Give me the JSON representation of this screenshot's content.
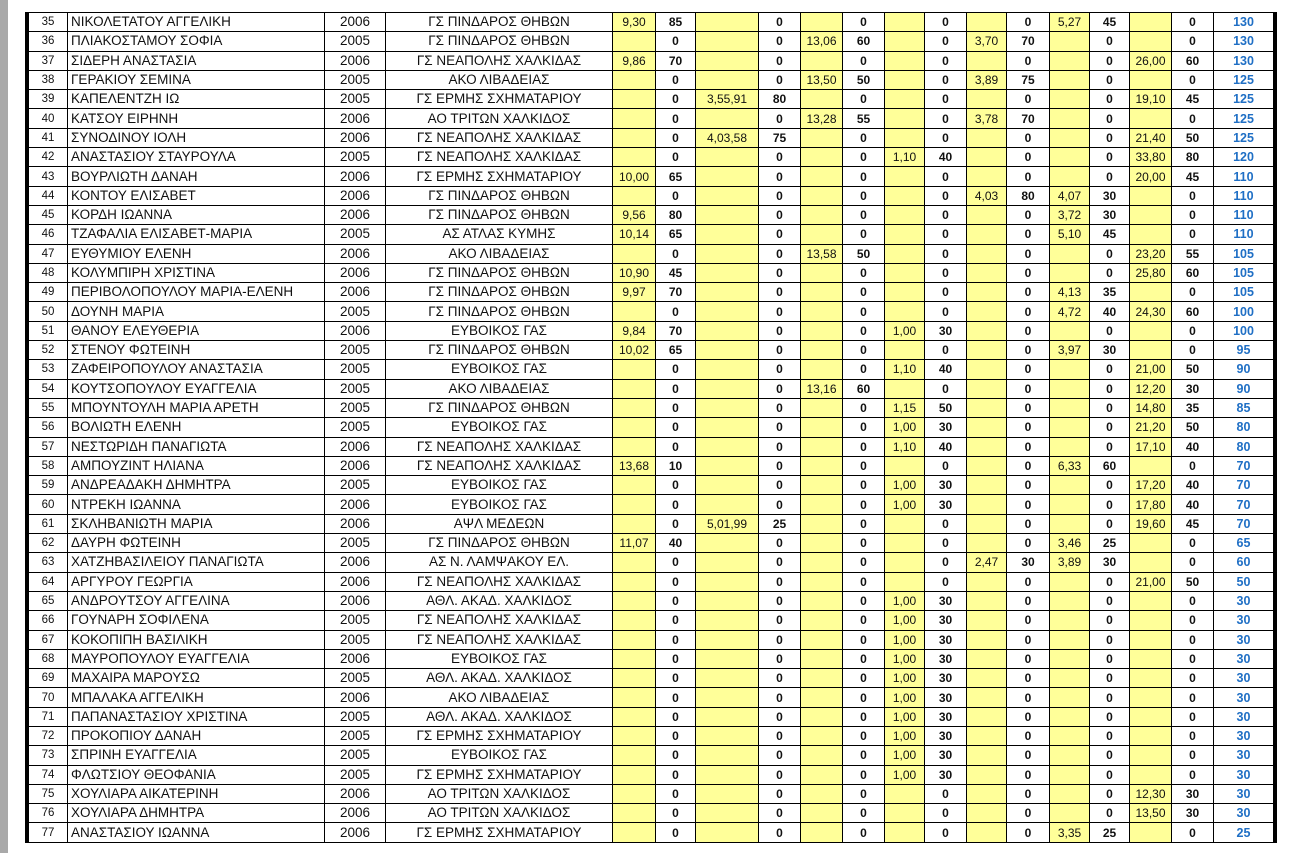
{
  "colors": {
    "performance_bg": "#ffff99",
    "total_text": "#1f6fc5"
  },
  "rows": [
    [
      "35",
      "ΝΙΚΟΛΕΤΑΤΟΥ ΑΓΓΕΛΙΚΗ",
      "2006",
      "ΓΣ ΠΙΝΔΑΡΟΣ ΘΗΒΩΝ",
      "9,30",
      "85",
      "",
      "0",
      "",
      "0",
      "",
      "0",
      "",
      "0",
      "5,27",
      "45",
      "",
      "0",
      "130"
    ],
    [
      "36",
      "ΠΛΙΑΚΟΣΤΑΜΟΥ ΣΟΦΙΑ",
      "2005",
      "ΓΣ ΠΙΝΔΑΡΟΣ ΘΗΒΩΝ",
      "",
      "0",
      "",
      "0",
      "13,06",
      "60",
      "",
      "0",
      "3,70",
      "70",
      "",
      "0",
      "",
      "0",
      "130"
    ],
    [
      "37",
      "ΣΙΔΕΡΗ ΑΝΑΣΤΑΣΙΑ",
      "2006",
      "ΓΣ ΝΕΑΠΟΛΗΣ ΧΑΛΚΙΔΑΣ",
      "9,86",
      "70",
      "",
      "0",
      "",
      "0",
      "",
      "0",
      "",
      "0",
      "",
      "0",
      "26,00",
      "60",
      "130"
    ],
    [
      "38",
      "ΓΕΡΑΚΙΟΥ ΣΕΜΙΝΑ",
      "2005",
      "ΑΚΟ ΛΙΒΑΔΕΙΑΣ",
      "",
      "0",
      "",
      "0",
      "13,50",
      "50",
      "",
      "0",
      "3,89",
      "75",
      "",
      "0",
      "",
      "0",
      "125"
    ],
    [
      "39",
      "ΚΑΠΕΛΕΝΤΖΗ ΙΩ",
      "2005",
      "ΓΣ ΕΡΜΗΣ ΣΧΗΜΑΤΑΡΙΟΥ",
      "",
      "0",
      "3,55,91",
      "80",
      "",
      "0",
      "",
      "0",
      "",
      "0",
      "",
      "0",
      "19,10",
      "45",
      "125"
    ],
    [
      "40",
      "ΚΑΤΣΟΥ ΕΙΡΗΝΗ",
      "2006",
      "ΑΟ ΤΡΙΤΩΝ ΧΑΛΚΙΔΟΣ",
      "",
      "0",
      "",
      "0",
      "13,28",
      "55",
      "",
      "0",
      "3,78",
      "70",
      "",
      "0",
      "",
      "0",
      "125"
    ],
    [
      "41",
      "ΣΥΝΟΔΙΝΟΥ ΙΟΛΗ",
      "2006",
      "ΓΣ ΝΕΑΠΟΛΗΣ ΧΑΛΚΙΔΑΣ",
      "",
      "0",
      "4,03,58",
      "75",
      "",
      "0",
      "",
      "0",
      "",
      "0",
      "",
      "0",
      "21,40",
      "50",
      "125"
    ],
    [
      "42",
      "ΑΝΑΣΤΑΣΙΟΥ ΣΤΑΥΡΟΥΛΑ",
      "2005",
      "ΓΣ ΝΕΑΠΟΛΗΣ ΧΑΛΚΙΔΑΣ",
      "",
      "0",
      "",
      "0",
      "",
      "0",
      "1,10",
      "40",
      "",
      "0",
      "",
      "0",
      "33,80",
      "80",
      "120"
    ],
    [
      "43",
      "ΒΟΥΡΛΙΩΤΗ ΔΑΝΑΗ",
      "2006",
      "ΓΣ ΕΡΜΗΣ ΣΧΗΜΑΤΑΡΙΟΥ",
      "10,00",
      "65",
      "",
      "0",
      "",
      "0",
      "",
      "0",
      "",
      "0",
      "",
      "0",
      "20,00",
      "45",
      "110"
    ],
    [
      "44",
      "ΚΟΝΤΟΥ ΕΛΙΣΑΒΕΤ",
      "2006",
      "ΓΣ ΠΙΝΔΑΡΟΣ ΘΗΒΩΝ",
      "",
      "0",
      "",
      "0",
      "",
      "0",
      "",
      "0",
      "4,03",
      "80",
      "4,07",
      "30",
      "",
      "0",
      "110"
    ],
    [
      "45",
      "ΚΟΡΔΗ ΙΩΑΝΝΑ",
      "2006",
      "ΓΣ ΠΙΝΔΑΡΟΣ ΘΗΒΩΝ",
      "9,56",
      "80",
      "",
      "0",
      "",
      "0",
      "",
      "0",
      "",
      "0",
      "3,72",
      "30",
      "",
      "0",
      "110"
    ],
    [
      "46",
      "ΤΖΑΦΑΛΙΑ ΕΛΙΣΑΒΕΤ-ΜΑΡΙΑ",
      "2005",
      "ΑΣ ΑΤΛΑΣ ΚΥΜΗΣ",
      "10,14",
      "65",
      "",
      "0",
      "",
      "0",
      "",
      "0",
      "",
      "0",
      "5,10",
      "45",
      "",
      "0",
      "110"
    ],
    [
      "47",
      "ΕΥΘΥΜΙΟΥ ΕΛΕΝΗ",
      "2006",
      "ΑΚΟ ΛΙΒΑΔΕΙΑΣ",
      "",
      "0",
      "",
      "0",
      "13,58",
      "50",
      "",
      "0",
      "",
      "0",
      "",
      "0",
      "23,20",
      "55",
      "105"
    ],
    [
      "48",
      "ΚΟΛΥΜΠΙΡΗ ΧΡΙΣΤΙΝΑ",
      "2006",
      "ΓΣ ΠΙΝΔΑΡΟΣ ΘΗΒΩΝ",
      "10,90",
      "45",
      "",
      "0",
      "",
      "0",
      "",
      "0",
      "",
      "0",
      "",
      "0",
      "25,80",
      "60",
      "105"
    ],
    [
      "49",
      "ΠΕΡΙΒΟΛΟΠΟΥΛΟΥ ΜΑΡΙΑ-ΕΛΕΝΗ",
      "2006",
      "ΓΣ ΠΙΝΔΑΡΟΣ ΘΗΒΩΝ",
      "9,97",
      "70",
      "",
      "0",
      "",
      "0",
      "",
      "0",
      "",
      "0",
      "4,13",
      "35",
      "",
      "0",
      "105"
    ],
    [
      "50",
      "ΔΟΥΝΗ ΜΑΡΙΑ",
      "2005",
      "ΓΣ ΠΙΝΔΑΡΟΣ ΘΗΒΩΝ",
      "",
      "0",
      "",
      "0",
      "",
      "0",
      "",
      "0",
      "",
      "0",
      "4,72",
      "40",
      "24,30",
      "60",
      "100"
    ],
    [
      "51",
      "ΘΑΝΟΥ ΕΛΕΥΘΕΡΙΑ",
      "2006",
      "ΕΥΒΟΙΚΟΣ ΓΑΣ",
      "9,84",
      "70",
      "",
      "0",
      "",
      "0",
      "1,00",
      "30",
      "",
      "0",
      "",
      "0",
      "",
      "0",
      "100"
    ],
    [
      "52",
      "ΣΤΕΝΟΥ ΦΩΤΕΙΝΗ",
      "2005",
      "ΓΣ ΠΙΝΔΑΡΟΣ ΘΗΒΩΝ",
      "10,02",
      "65",
      "",
      "0",
      "",
      "0",
      "",
      "0",
      "",
      "0",
      "3,97",
      "30",
      "",
      "0",
      "95"
    ],
    [
      "53",
      "ΖΑΦΕΙΡΟΠΟΥΛΟΥ ΑΝΑΣΤΑΣΙΑ",
      "2005",
      "ΕΥΒΟΙΚΟΣ ΓΑΣ",
      "",
      "0",
      "",
      "0",
      "",
      "0",
      "1,10",
      "40",
      "",
      "0",
      "",
      "0",
      "21,00",
      "50",
      "90"
    ],
    [
      "54",
      "ΚΟΥΤΣΟΠΟΥΛΟΥ ΕΥΑΓΓΕΛΙΑ",
      "2005",
      "ΑΚΟ ΛΙΒΑΔΕΙΑΣ",
      "",
      "0",
      "",
      "0",
      "13,16",
      "60",
      "",
      "0",
      "",
      "0",
      "",
      "0",
      "12,20",
      "30",
      "90"
    ],
    [
      "55",
      "ΜΠΟΥΝΤΟΥΛΗ ΜΑΡΙΑ ΑΡΕΤΗ",
      "2005",
      "ΓΣ ΠΙΝΔΑΡΟΣ ΘΗΒΩΝ",
      "",
      "0",
      "",
      "0",
      "",
      "0",
      "1,15",
      "50",
      "",
      "0",
      "",
      "0",
      "14,80",
      "35",
      "85"
    ],
    [
      "56",
      "ΒΟΛΙΩΤΗ ΕΛΕΝΗ",
      "2005",
      "ΕΥΒΟΙΚΟΣ ΓΑΣ",
      "",
      "0",
      "",
      "0",
      "",
      "0",
      "1,00",
      "30",
      "",
      "0",
      "",
      "0",
      "21,20",
      "50",
      "80"
    ],
    [
      "57",
      "ΝΕΣΤΩΡΙΔΗ ΠΑΝΑΓΙΩΤΑ",
      "2006",
      "ΓΣ ΝΕΑΠΟΛΗΣ ΧΑΛΚΙΔΑΣ",
      "",
      "0",
      "",
      "0",
      "",
      "0",
      "1,10",
      "40",
      "",
      "0",
      "",
      "0",
      "17,10",
      "40",
      "80"
    ],
    [
      "58",
      "ΑΜΠΟΥΖΙΝΤ ΗΛΙΑΝΑ",
      "2006",
      "ΓΣ ΝΕΑΠΟΛΗΣ ΧΑΛΚΙΔΑΣ",
      "13,68",
      "10",
      "",
      "0",
      "",
      "0",
      "",
      "0",
      "",
      "0",
      "6,33",
      "60",
      "",
      "0",
      "70"
    ],
    [
      "59",
      "ΑΝΔΡΕΑΔΑΚΗ ΔΗΜΗΤΡΑ",
      "2005",
      "ΕΥΒΟΙΚΟΣ ΓΑΣ",
      "",
      "0",
      "",
      "0",
      "",
      "0",
      "1,00",
      "30",
      "",
      "0",
      "",
      "0",
      "17,20",
      "40",
      "70"
    ],
    [
      "60",
      "ΝΤΡΕΚΗ ΙΩΑΝΝΑ",
      "2006",
      "ΕΥΒΟΙΚΟΣ ΓΑΣ",
      "",
      "0",
      "",
      "0",
      "",
      "0",
      "1,00",
      "30",
      "",
      "0",
      "",
      "0",
      "17,80",
      "40",
      "70"
    ],
    [
      "61",
      "ΣΚΛΗΒΑΝΙΩΤΗ ΜΑΡΙΑ",
      "2006",
      "ΑΨΛ ΜΕΔΕΩΝ",
      "",
      "0",
      "5,01,99",
      "25",
      "",
      "0",
      "",
      "0",
      "",
      "0",
      "",
      "0",
      "19,60",
      "45",
      "70"
    ],
    [
      "62",
      "ΔΑΥΡΗ ΦΩΤΕΙΝΗ",
      "2005",
      "ΓΣ ΠΙΝΔΑΡΟΣ ΘΗΒΩΝ",
      "11,07",
      "40",
      "",
      "0",
      "",
      "0",
      "",
      "0",
      "",
      "0",
      "3,46",
      "25",
      "",
      "0",
      "65"
    ],
    [
      "63",
      "ΧΑΤΖΗΒΑΣΙΛΕΙΟΥ ΠΑΝΑΓΙΩΤΑ",
      "2006",
      "ΑΣ Ν. ΛΑΜΨΑΚΟΥ ΕΛ.",
      "",
      "0",
      "",
      "0",
      "",
      "0",
      "",
      "0",
      "2,47",
      "30",
      "3,89",
      "30",
      "",
      "0",
      "60"
    ],
    [
      "64",
      "ΑΡΓΥΡΟΥ ΓΕΩΡΓΙΑ",
      "2006",
      "ΓΣ ΝΕΑΠΟΛΗΣ ΧΑΛΚΙΔΑΣ",
      "",
      "0",
      "",
      "0",
      "",
      "0",
      "",
      "0",
      "",
      "0",
      "",
      "0",
      "21,00",
      "50",
      "50"
    ],
    [
      "65",
      "ΑΝΔΡΟΥΤΣΟΥ ΑΓΓΕΛΙΝΑ",
      "2006",
      "ΑΘΛ. ΑΚΑΔ. ΧΑΛΚΙΔΟΣ",
      "",
      "0",
      "",
      "0",
      "",
      "0",
      "1,00",
      "30",
      "",
      "0",
      "",
      "0",
      "",
      "0",
      "30"
    ],
    [
      "66",
      "ΓΟΥΝΑΡΗ ΣΟΦΙΛΕΝΑ",
      "2005",
      "ΓΣ ΝΕΑΠΟΛΗΣ ΧΑΛΚΙΔΑΣ",
      "",
      "0",
      "",
      "0",
      "",
      "0",
      "1,00",
      "30",
      "",
      "0",
      "",
      "0",
      "",
      "0",
      "30"
    ],
    [
      "67",
      "ΚΟΚΟΠΙΠΗ ΒΑΣΙΛΙΚΗ",
      "2005",
      "ΓΣ ΝΕΑΠΟΛΗΣ ΧΑΛΚΙΔΑΣ",
      "",
      "0",
      "",
      "0",
      "",
      "0",
      "1,00",
      "30",
      "",
      "0",
      "",
      "0",
      "",
      "0",
      "30"
    ],
    [
      "68",
      "ΜΑΥΡΟΠΟΥΛΟΥ ΕΥΑΓΓΕΛΙΑ",
      "2006",
      "ΕΥΒΟΙΚΟΣ ΓΑΣ",
      "",
      "0",
      "",
      "0",
      "",
      "0",
      "1,00",
      "30",
      "",
      "0",
      "",
      "0",
      "",
      "0",
      "30"
    ],
    [
      "69",
      "ΜΑΧΑΙΡΑ ΜΑΡΟΥΣΩ",
      "2005",
      "ΑΘΛ. ΑΚΑΔ. ΧΑΛΚΙΔΟΣ",
      "",
      "0",
      "",
      "0",
      "",
      "0",
      "1,00",
      "30",
      "",
      "0",
      "",
      "0",
      "",
      "0",
      "30"
    ],
    [
      "70",
      "ΜΠΑΛΑΚΑ ΑΓΓΕΛΙΚΗ",
      "2006",
      "ΑΚΟ ΛΙΒΑΔΕΙΑΣ",
      "",
      "0",
      "",
      "0",
      "",
      "0",
      "1,00",
      "30",
      "",
      "0",
      "",
      "0",
      "",
      "0",
      "30"
    ],
    [
      "71",
      "ΠΑΠΑΝΑΣΤΑΣΙΟΥ ΧΡΙΣΤΙΝΑ",
      "2005",
      "ΑΘΛ. ΑΚΑΔ. ΧΑΛΚΙΔΟΣ",
      "",
      "0",
      "",
      "0",
      "",
      "0",
      "1,00",
      "30",
      "",
      "0",
      "",
      "0",
      "",
      "0",
      "30"
    ],
    [
      "72",
      "ΠΡΟΚΟΠΙΟΥ ΔΑΝΑΗ",
      "2005",
      "ΓΣ ΕΡΜΗΣ ΣΧΗΜΑΤΑΡΙΟΥ",
      "",
      "0",
      "",
      "0",
      "",
      "0",
      "1,00",
      "30",
      "",
      "0",
      "",
      "0",
      "",
      "0",
      "30"
    ],
    [
      "73",
      "ΣΠΡΙΝΗ ΕΥΑΓΓΕΛΙΑ",
      "2005",
      "ΕΥΒΟΙΚΟΣ ΓΑΣ",
      "",
      "0",
      "",
      "0",
      "",
      "0",
      "1,00",
      "30",
      "",
      "0",
      "",
      "0",
      "",
      "0",
      "30"
    ],
    [
      "74",
      "ΦΛΩΤΣΙΟΥ ΘΕΟΦΑΝΙΑ",
      "2005",
      "ΓΣ ΕΡΜΗΣ ΣΧΗΜΑΤΑΡΙΟΥ",
      "",
      "0",
      "",
      "0",
      "",
      "0",
      "1,00",
      "30",
      "",
      "0",
      "",
      "0",
      "",
      "0",
      "30"
    ],
    [
      "75",
      "ΧΟΥΛΙΑΡΑ ΑΙΚΑΤΕΡΙΝΗ",
      "2006",
      "ΑΟ ΤΡΙΤΩΝ ΧΑΛΚΙΔΟΣ",
      "",
      "0",
      "",
      "0",
      "",
      "0",
      "",
      "0",
      "",
      "0",
      "",
      "0",
      "12,30",
      "30",
      "30"
    ],
    [
      "76",
      "ΧΟΥΛΙΑΡΑ ΔΗΜΗΤΡΑ",
      "2006",
      "ΑΟ ΤΡΙΤΩΝ ΧΑΛΚΙΔΟΣ",
      "",
      "0",
      "",
      "0",
      "",
      "0",
      "",
      "0",
      "",
      "0",
      "",
      "0",
      "13,50",
      "30",
      "30"
    ],
    [
      "77",
      "ΑΝΑΣΤΑΣΙΟΥ ΙΩΑΝΝΑ",
      "2006",
      "ΓΣ ΕΡΜΗΣ ΣΧΗΜΑΤΑΡΙΟΥ",
      "",
      "0",
      "",
      "0",
      "",
      "0",
      "",
      "0",
      "",
      "0",
      "3,35",
      "25",
      "",
      "0",
      "25"
    ]
  ]
}
